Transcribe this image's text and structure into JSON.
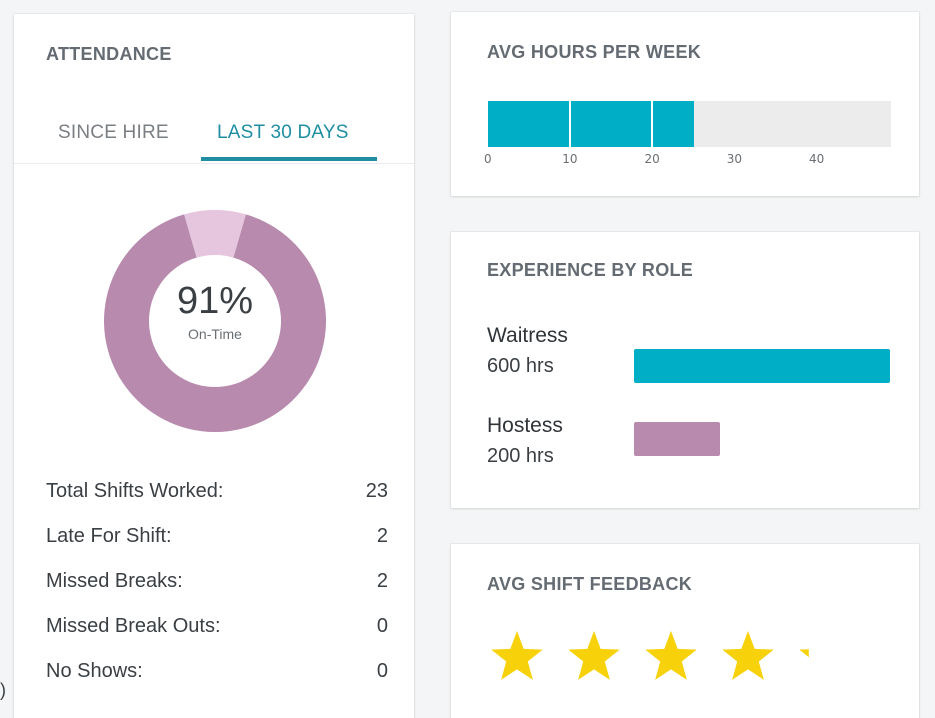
{
  "attendance": {
    "title": "ATTENDANCE",
    "tabs": [
      {
        "label": "SINCE HIRE",
        "active": false
      },
      {
        "label": "LAST 30 DAYS",
        "active": true
      }
    ],
    "donut": {
      "percent_label": "91%",
      "percent_value": 91,
      "sublabel": "On-Time",
      "on_time_color": "#b88aad",
      "late_color": "#e6c5df"
    },
    "stats": [
      {
        "label": "Total Shifts Worked:",
        "value": "23"
      },
      {
        "label": "Late For Shift:",
        "value": "2"
      },
      {
        "label": "Missed Breaks:",
        "value": "2"
      },
      {
        "label": "Missed Break Outs:",
        "value": "0"
      },
      {
        "label": "No Shows:",
        "value": "0"
      }
    ]
  },
  "avg_hours": {
    "title": "AVG HOURS PER WEEK",
    "value": 25,
    "max": 49,
    "ticks": [
      "0",
      "10",
      "20",
      "30",
      "40"
    ],
    "bar_color": "#00aec5"
  },
  "experience": {
    "title": "EXPERIENCE BY ROLE",
    "max_hours": 600,
    "roles": [
      {
        "name": "Waitress",
        "hours_label": "600 hrs",
        "hours": 600,
        "color": "#00aec5"
      },
      {
        "name": "Hostess",
        "hours_label": "200 hrs",
        "hours": 200,
        "color": "#b88aad"
      }
    ]
  },
  "feedback": {
    "title": "AVG SHIFT FEEDBACK",
    "rating": 4.2,
    "max_rating": 5,
    "star_color": "#f7d20a"
  },
  "edge_text": ")"
}
